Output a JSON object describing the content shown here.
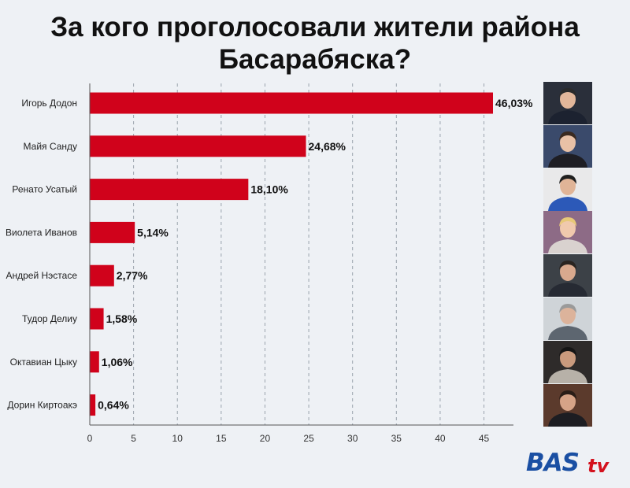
{
  "chart_data": {
    "type": "bar",
    "orientation": "horizontal",
    "title": "За кого проголосовали жители района\nБасарабяска?",
    "categories": [
      "Игорь Додон",
      "Майя Санду",
      "Ренато Усатый",
      "Виолета Иванов",
      "Андрей Нэстасе",
      "Тудор Делиу",
      "Октавиан Цыку",
      "Дорин Киртоакэ"
    ],
    "values": [
      46.03,
      24.68,
      18.1,
      5.14,
      2.77,
      1.58,
      1.06,
      0.64
    ],
    "value_labels": [
      "46,03%",
      "24,68%",
      "18,10%",
      "5,14%",
      "2,77%",
      "1,58%",
      "1,06%",
      "0,64%"
    ],
    "xlim": [
      0,
      48
    ],
    "xticks": [
      0,
      5,
      10,
      15,
      20,
      25,
      30,
      35,
      40,
      45
    ],
    "grid": "vertical dashed",
    "bar_color": "#d0021b",
    "xlabel": "",
    "ylabel": ""
  },
  "photos": [
    {
      "name": "photo-dodon",
      "bg": "#2a2f3a",
      "skin": "#e2b79a",
      "hair": "#2b2b2b",
      "suit": "#1c2230"
    },
    {
      "name": "photo-sandu",
      "bg": "#3a4a6b",
      "skin": "#e8c1a6",
      "hair": "#3a2a20",
      "suit": "#1e1e24"
    },
    {
      "name": "photo-usatii",
      "bg": "#e9e9ea",
      "skin": "#e0b497",
      "hair": "#1f1f1f",
      "suit": "#2c59b8"
    },
    {
      "name": "photo-ivanov",
      "bg": "#8d6b86",
      "skin": "#f0c9ad",
      "hair": "#e7c878",
      "suit": "#d9d2cf"
    },
    {
      "name": "photo-nastase",
      "bg": "#3c4147",
      "skin": "#d9a98e",
      "hair": "#2a2420",
      "suit": "#262a33"
    },
    {
      "name": "photo-deliu",
      "bg": "#cfd4d8",
      "skin": "#dcb39b",
      "hair": "#9a9a9a",
      "suit": "#5d6670"
    },
    {
      "name": "photo-tacu",
      "bg": "#2e2b2a",
      "skin": "#c99a7d",
      "hair": "#151515",
      "suit": "#b7b1a8"
    },
    {
      "name": "photo-chirtoaca",
      "bg": "#5b3a2c",
      "skin": "#d6a387",
      "hair": "#2a1d17",
      "suit": "#1d1d22"
    }
  ],
  "logo": {
    "part1": "BAS",
    "part2": "tv",
    "color_primary": "#1a4fa3",
    "color_accent": "#d4121e"
  }
}
